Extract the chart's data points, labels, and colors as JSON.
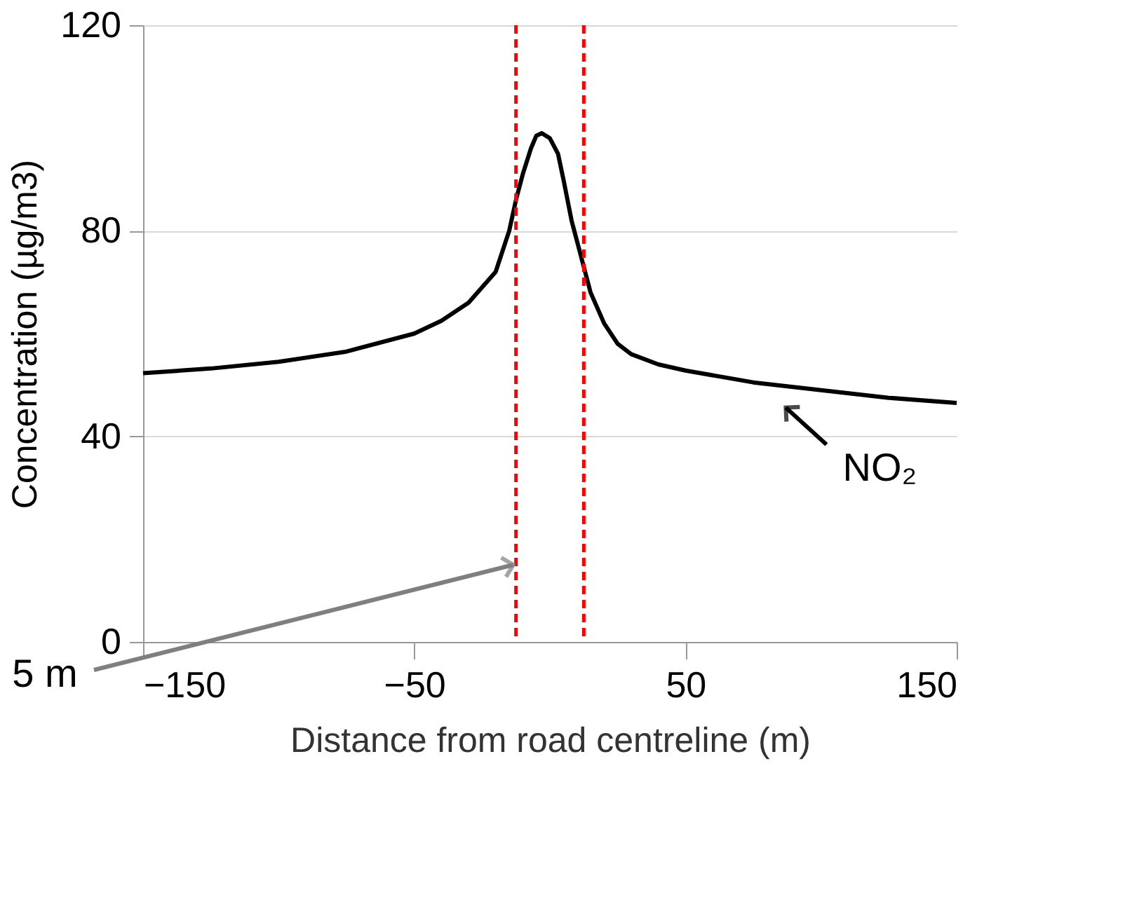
{
  "chart_data": {
    "type": "line",
    "xlabel": "Distance from road centreline (m)",
    "ylabel": "Concentration (µg/m3)",
    "x": [
      -150,
      -125,
      -100,
      -75,
      -50,
      -40,
      -30,
      -20,
      -15,
      -12.5,
      -10,
      -7,
      -5,
      -3,
      0,
      3,
      5,
      8,
      10,
      12.5,
      15,
      20,
      25,
      30,
      40,
      50,
      75,
      100,
      125,
      150
    ],
    "series": [
      {
        "color": "#000000",
        "values": [
          52.3,
          53.2,
          54.5,
          56.5,
          60,
          62.5,
          66,
          72,
          80,
          86,
          91,
          96,
          98.5,
          99,
          98,
          95,
          90,
          82,
          78,
          73,
          68,
          62,
          58,
          56,
          54,
          52.8,
          50.5,
          49,
          47.5,
          46.5
        ]
      }
    ],
    "xlim": [
      -150,
      150
    ],
    "xticks": [
      -150,
      -50,
      50,
      150
    ],
    "ylim": [
      0,
      120
    ],
    "yticks": [
      0,
      40,
      80,
      120
    ],
    "grid": "y",
    "line_style": "solid",
    "marker": "none",
    "ref_lines": [
      {
        "axis": "x",
        "value": -12.5,
        "color": "#ff0000",
        "line_style": "dashed"
      },
      {
        "axis": "x",
        "value": 12.5,
        "color": "#ff0000",
        "line_style": "dashed"
      }
    ],
    "annotations": [
      "NO₂",
      "5 m"
    ]
  }
}
